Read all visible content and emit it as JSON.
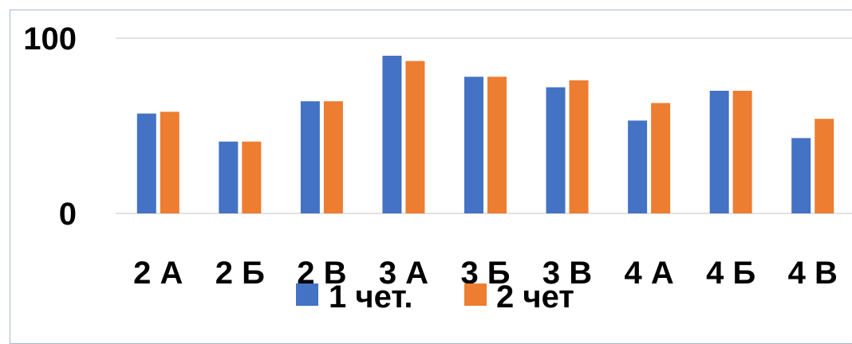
{
  "chart_data": {
    "type": "bar",
    "title": "",
    "xlabel": "",
    "ylabel": "",
    "ylim": [
      0,
      100
    ],
    "y_ticks": [
      "0",
      "100"
    ],
    "grid": true,
    "legend_position": "bottom",
    "categories": [
      "2 А",
      "2 Б",
      "2 В",
      "3 А",
      "3 Б",
      "3 В",
      "4 А",
      "4 Б",
      "4 В"
    ],
    "series": [
      {
        "name": "1 чет.",
        "color": "#4472c4",
        "values": [
          57,
          41,
          64,
          90,
          78,
          72,
          53,
          70,
          43
        ]
      },
      {
        "name": "2 чет",
        "color": "#ed7d31",
        "values": [
          58,
          41,
          64,
          87,
          78,
          76,
          63,
          70,
          54
        ]
      }
    ]
  }
}
